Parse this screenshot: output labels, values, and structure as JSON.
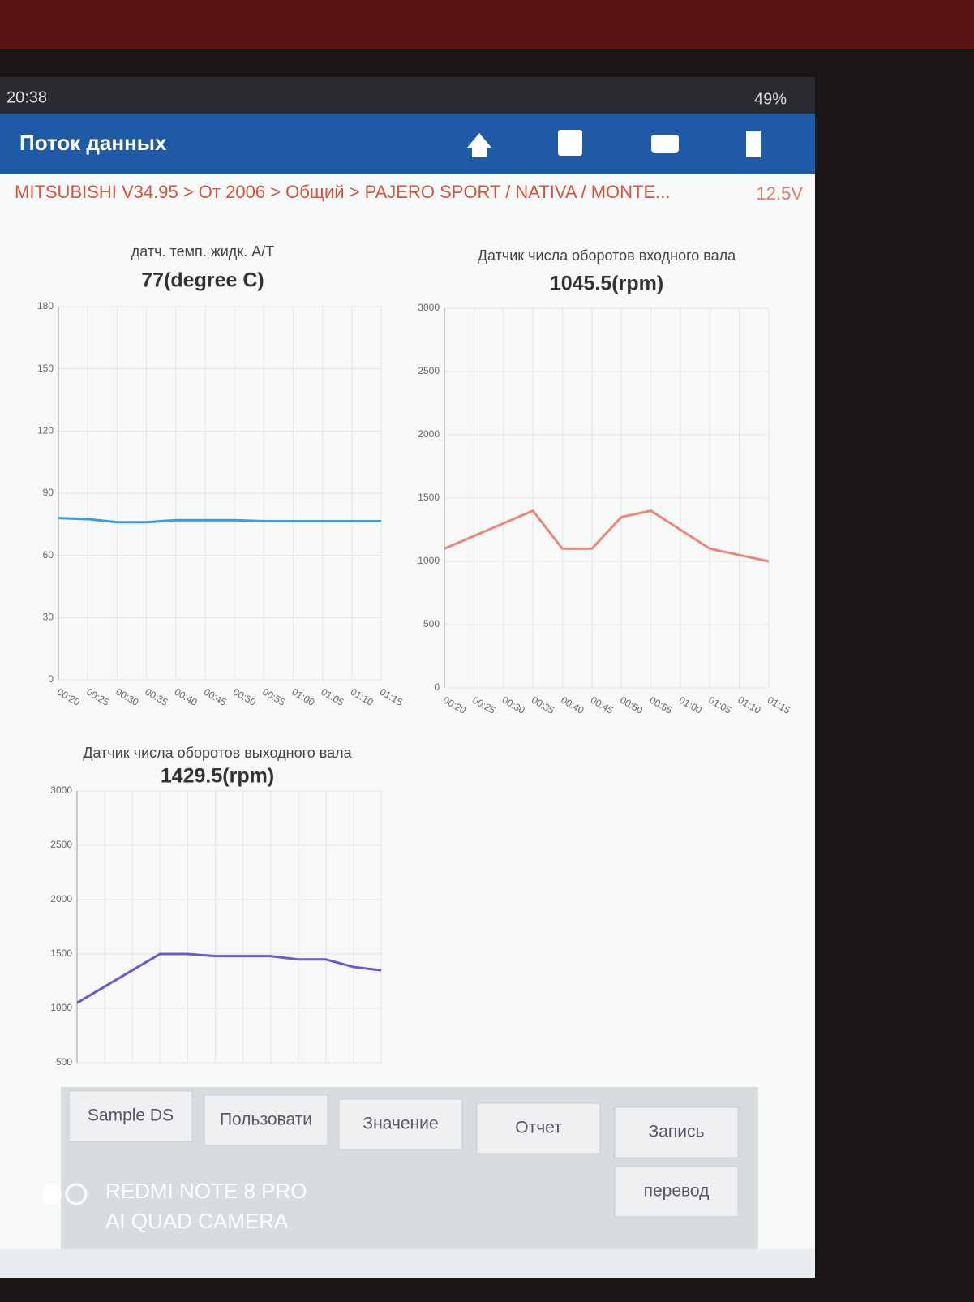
{
  "status_bar": {
    "time": "20:38",
    "battery": "49%"
  },
  "app_bar": {
    "title": "Поток данных"
  },
  "breadcrumb": {
    "path": "MITSUBISHI V34.95 > От 2006 > Общий > PAJERO SPORT / NATIVA / MONTE...",
    "voltage": "12.5V"
  },
  "chart_data": [
    {
      "type": "line",
      "title": "датч. темп. жидк. A/T",
      "subtitle": "77(degree C)",
      "color": "#3a9be0",
      "grid": true,
      "categories": [
        "00:20",
        "00:25",
        "00:30",
        "00:35",
        "00:40",
        "00:45",
        "00:50",
        "00:55",
        "01:00",
        "01:05",
        "01:10",
        "01:15"
      ],
      "values": [
        78,
        77.5,
        76,
        76,
        77,
        77,
        77,
        76.5,
        76.5,
        76.5,
        76.5,
        76.5
      ],
      "ylim": [
        0,
        180
      ],
      "yticks": [
        0,
        30,
        60,
        90,
        120,
        150,
        180
      ]
    },
    {
      "type": "line",
      "title": "Датчик числа оборотов входного вала",
      "subtitle": "1045.5(rpm)",
      "color": "#e8887a",
      "grid": true,
      "categories": [
        "00:20",
        "00:25",
        "00:30",
        "00:35",
        "00:40",
        "00:45",
        "00:50",
        "00:55",
        "01:00",
        "01:05",
        "01:10",
        "01:15"
      ],
      "values": [
        1100,
        1200,
        1300,
        1400,
        1100,
        1100,
        1350,
        1400,
        1250,
        1100,
        1050,
        1000
      ],
      "ylim": [
        0,
        3000
      ],
      "yticks": [
        0,
        500,
        1000,
        1500,
        2000,
        2500,
        3000
      ]
    },
    {
      "type": "line",
      "title": "Датчик числа оборотов выходного вала",
      "subtitle": "1429.5(rpm)",
      "color": "#6a5acd",
      "grid": true,
      "categories": [
        null,
        null,
        null,
        null,
        null,
        null,
        null,
        null,
        null,
        null,
        null,
        null
      ],
      "values": [
        1050,
        1200,
        1350,
        1500,
        1500,
        1480,
        1480,
        1480,
        1450,
        1450,
        1380,
        1350
      ],
      "ylim": [
        500,
        3000
      ],
      "yticks": [
        500,
        1000,
        1500,
        2000,
        2500,
        3000
      ]
    }
  ],
  "buttons": [
    "Sample DS",
    "Пользовати",
    "Значение",
    "Отчет",
    "Запись",
    "перевод"
  ],
  "watermark": {
    "line1": "REDMI NOTE 8 PRO",
    "line2": "AI QUAD CAMERA"
  }
}
